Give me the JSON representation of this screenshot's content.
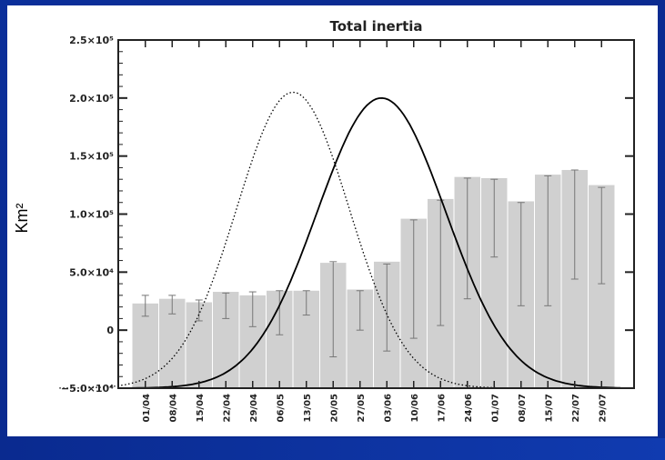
{
  "chart_data": {
    "type": "bar",
    "title": "Total inertia",
    "ylabel": "Km²",
    "xlabel": "",
    "ylim": [
      -50000,
      250000
    ],
    "y_ticks": [
      {
        "value": -50000,
        "label": "−5.0×10⁴"
      },
      {
        "value": 0,
        "label": "0"
      },
      {
        "value": 50000,
        "label": "5.0×10⁴"
      },
      {
        "value": 100000,
        "label": "1.0×10⁵"
      },
      {
        "value": 150000,
        "label": "1.5×10⁵"
      },
      {
        "value": 200000,
        "label": "2.0×10⁵"
      },
      {
        "value": 250000,
        "label": "2.5×10⁵"
      }
    ],
    "categories": [
      "01/04",
      "08/04",
      "15/04",
      "22/04",
      "29/04",
      "06/05",
      "13/05",
      "20/05",
      "27/05",
      "03/06",
      "10/06",
      "17/06",
      "24/06",
      "01/07",
      "08/07",
      "15/07",
      "22/07",
      "29/07"
    ],
    "values": [
      23000,
      27000,
      24000,
      33000,
      30000,
      34000,
      34000,
      58000,
      35000,
      59000,
      96000,
      113000,
      132000,
      131000,
      111000,
      134000,
      138000,
      125000
    ],
    "error_bars": [
      {
        "low": 12000,
        "high": 30000
      },
      {
        "low": 14000,
        "high": 30000
      },
      {
        "low": 8000,
        "high": 26000
      },
      {
        "low": 10000,
        "high": 32000
      },
      {
        "low": 3000,
        "high": 33000
      },
      {
        "low": -4000,
        "high": 34000
      },
      {
        "low": 13000,
        "high": 34000
      },
      {
        "low": -23000,
        "high": 59000
      },
      {
        "low": 0,
        "high": 34000
      },
      {
        "low": -18000,
        "high": 57000
      },
      {
        "low": -7000,
        "high": 95000
      },
      {
        "low": 4000,
        "high": 112000
      },
      {
        "low": 27000,
        "high": 131000
      },
      {
        "low": 63000,
        "high": 130000
      },
      {
        "low": 21000,
        "high": 110000
      },
      {
        "low": 21000,
        "high": 133000
      },
      {
        "low": 44000,
        "high": 138000
      },
      {
        "low": 40000,
        "high": 123000
      }
    ],
    "curves": [
      {
        "style": "dotted",
        "peak": 205000,
        "peak_index": 5.5,
        "sigma": 2.1,
        "start_index": -3.2,
        "end_index": 13.9
      },
      {
        "style": "solid",
        "peak": 200000,
        "peak_index": 8.8,
        "sigma": 2.4,
        "start_index": -0.5,
        "end_index": 17.7
      }
    ],
    "grid": false,
    "bar_color": "#d0d0d0"
  }
}
